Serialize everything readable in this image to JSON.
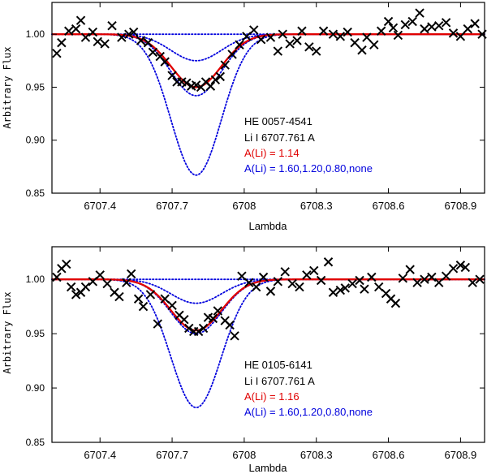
{
  "chart_data": [
    {
      "type": "line",
      "star": "HE 0057-4541",
      "line_label": "Li I 6707.761 A",
      "best_label": "A(Li) = 1.14",
      "grid_label": "A(Li) = 1.60,1.20,0.80,none",
      "xlabel": "Lambda",
      "ylabel": "Arbitrary Flux",
      "xlim": [
        6707.2,
        6709.0
      ],
      "ylim": [
        0.85,
        1.03
      ],
      "xticks": [
        6707.4,
        6707.7,
        6708.0,
        6708.3,
        6708.6,
        6708.9
      ],
      "xtick_labels": [
        "6707.4",
        "6707.7",
        "6708",
        "6708.3",
        "6708.6",
        "6708.9"
      ],
      "yticks": [
        0.85,
        0.9,
        0.95,
        1.0
      ],
      "ytick_labels": [
        "0.85",
        "0.90",
        "0.95",
        "1.00"
      ],
      "line_center": 6707.8,
      "line_sigma": 0.105,
      "best_fit": {
        "name": "A(Li) = 1.14",
        "color": "#e00000",
        "depth": 0.05
      },
      "series": [
        {
          "name": "A(Li) = 1.60",
          "color": "#0000dd",
          "depth": 0.133
        },
        {
          "name": "A(Li) = 1.20",
          "color": "#0000dd",
          "depth": 0.058
        },
        {
          "name": "A(Li) = 0.80",
          "color": "#0000dd",
          "depth": 0.025
        },
        {
          "name": "none",
          "color": "#0000dd",
          "depth": 0.0
        }
      ],
      "observed": [
        [
          6707.22,
          0.982
        ],
        [
          6707.24,
          0.992
        ],
        [
          6707.27,
          1.003
        ],
        [
          6707.3,
          1.005
        ],
        [
          6707.32,
          1.013
        ],
        [
          6707.34,
          0.997
        ],
        [
          6707.37,
          1.002
        ],
        [
          6707.39,
          0.993
        ],
        [
          6707.42,
          0.991
        ],
        [
          6707.45,
          1.008
        ],
        [
          6707.49,
          0.997
        ],
        [
          6707.52,
          1.0
        ],
        [
          6707.54,
          1.002
        ],
        [
          6707.57,
          0.994
        ],
        [
          6707.6,
          0.992
        ],
        [
          6707.62,
          0.983
        ],
        [
          6707.65,
          0.979
        ],
        [
          6707.67,
          0.974
        ],
        [
          6707.7,
          0.961
        ],
        [
          6707.72,
          0.955
        ],
        [
          6707.74,
          0.955
        ],
        [
          6707.76,
          0.954
        ],
        [
          6707.78,
          0.951
        ],
        [
          6707.8,
          0.952
        ],
        [
          6707.82,
          0.95
        ],
        [
          6707.84,
          0.955
        ],
        [
          6707.86,
          0.951
        ],
        [
          6707.88,
          0.957
        ],
        [
          6707.9,
          0.96
        ],
        [
          6707.92,
          0.971
        ],
        [
          6707.95,
          0.981
        ],
        [
          6707.98,
          0.99
        ],
        [
          6708.01,
          0.998
        ],
        [
          6708.04,
          1.004
        ],
        [
          6708.07,
          0.995
        ],
        [
          6708.11,
          0.997
        ],
        [
          6708.14,
          0.984
        ],
        [
          6708.16,
          1.0
        ],
        [
          6708.19,
          0.991
        ],
        [
          6708.22,
          0.994
        ],
        [
          6708.24,
          1.003
        ],
        [
          6708.27,
          0.988
        ],
        [
          6708.3,
          0.984
        ],
        [
          6708.33,
          1.003
        ],
        [
          6708.37,
          1.0
        ],
        [
          6708.4,
          0.998
        ],
        [
          6708.43,
          1.002
        ],
        [
          6708.46,
          0.992
        ],
        [
          6708.49,
          0.985
        ],
        [
          6708.51,
          0.997
        ],
        [
          6708.54,
          0.99
        ],
        [
          6708.57,
          1.003
        ],
        [
          6708.6,
          1.012
        ],
        [
          6708.62,
          1.006
        ],
        [
          6708.64,
          0.999
        ],
        [
          6708.67,
          1.009
        ],
        [
          6708.7,
          1.012
        ],
        [
          6708.73,
          1.02
        ],
        [
          6708.75,
          1.005
        ],
        [
          6708.78,
          1.007
        ],
        [
          6708.81,
          1.008
        ],
        [
          6708.84,
          1.011
        ],
        [
          6708.87,
          1.001
        ],
        [
          6708.9,
          0.998
        ],
        [
          6708.93,
          1.005
        ],
        [
          6708.96,
          1.01
        ],
        [
          6708.99,
          1.0
        ]
      ]
    },
    {
      "type": "line",
      "star": "HE 0105-6141",
      "line_label": "Li I 6707.761 A",
      "best_label": "A(Li) = 1.16",
      "grid_label": "A(Li) = 1.60,1.20,0.80,none",
      "xlabel": "Lambda",
      "ylabel": "Arbitrary Flux",
      "xlim": [
        6707.2,
        6709.0
      ],
      "ylim": [
        0.85,
        1.03
      ],
      "xticks": [
        6707.4,
        6707.7,
        6708.0,
        6708.3,
        6708.6,
        6708.9
      ],
      "xtick_labels": [
        "6707.4",
        "6707.7",
        "6708",
        "6708.3",
        "6708.6",
        "6708.9"
      ],
      "yticks": [
        0.85,
        0.9,
        0.95,
        1.0
      ],
      "ytick_labels": [
        "0.85",
        "0.90",
        "0.95",
        "1.00"
      ],
      "line_center": 6707.8,
      "line_sigma": 0.105,
      "best_fit": {
        "name": "A(Li) = 1.16",
        "color": "#e00000",
        "depth": 0.047
      },
      "series": [
        {
          "name": "A(Li) = 1.60",
          "color": "#0000dd",
          "depth": 0.118
        },
        {
          "name": "A(Li) = 1.20",
          "color": "#0000dd",
          "depth": 0.05
        },
        {
          "name": "A(Li) = 0.80",
          "color": "#0000dd",
          "depth": 0.022
        },
        {
          "name": "none",
          "color": "#0000dd",
          "depth": 0.0
        }
      ],
      "observed": [
        [
          6707.22,
          1.002
        ],
        [
          6707.24,
          1.01
        ],
        [
          6707.26,
          1.014
        ],
        [
          6707.28,
          0.993
        ],
        [
          6707.3,
          0.986
        ],
        [
          6707.32,
          0.988
        ],
        [
          6707.34,
          0.993
        ],
        [
          6707.37,
          0.998
        ],
        [
          6707.4,
          1.004
        ],
        [
          6707.43,
          0.996
        ],
        [
          6707.46,
          0.988
        ],
        [
          6707.48,
          0.984
        ],
        [
          6707.51,
          0.997
        ],
        [
          6707.53,
          1.005
        ],
        [
          6707.56,
          0.982
        ],
        [
          6707.58,
          0.975
        ],
        [
          6707.61,
          0.986
        ],
        [
          6707.64,
          0.959
        ],
        [
          6707.67,
          0.982
        ],
        [
          6707.7,
          0.976
        ],
        [
          6707.73,
          0.967
        ],
        [
          6707.75,
          0.963
        ],
        [
          6707.77,
          0.955
        ],
        [
          6707.79,
          0.952
        ],
        [
          6707.81,
          0.952
        ],
        [
          6707.83,
          0.955
        ],
        [
          6707.85,
          0.965
        ],
        [
          6707.87,
          0.964
        ],
        [
          6707.89,
          0.971
        ],
        [
          6707.92,
          0.962
        ],
        [
          6707.94,
          0.958
        ],
        [
          6707.96,
          0.948
        ],
        [
          6707.99,
          1.003
        ],
        [
          6708.02,
          0.997
        ],
        [
          6708.05,
          0.993
        ],
        [
          6708.08,
          1.002
        ],
        [
          6708.11,
          0.989
        ],
        [
          6708.14,
          0.998
        ],
        [
          6708.17,
          1.007
        ],
        [
          6708.2,
          0.996
        ],
        [
          6708.23,
          0.993
        ],
        [
          6708.26,
          1.004
        ],
        [
          6708.29,
          1.008
        ],
        [
          6708.32,
          0.999
        ],
        [
          6708.35,
          1.016
        ],
        [
          6708.37,
          0.988
        ],
        [
          6708.4,
          0.99
        ],
        [
          6708.42,
          0.992
        ],
        [
          6708.45,
          0.996
        ],
        [
          6708.48,
          0.999
        ],
        [
          6708.5,
          0.991
        ],
        [
          6708.53,
          1.002
        ],
        [
          6708.56,
          0.993
        ],
        [
          6708.59,
          0.987
        ],
        [
          6708.61,
          0.982
        ],
        [
          6708.63,
          0.978
        ],
        [
          6708.66,
          1.001
        ],
        [
          6708.69,
          1.009
        ],
        [
          6708.72,
          0.997
        ],
        [
          6708.75,
          1.0
        ],
        [
          6708.78,
          1.002
        ],
        [
          6708.81,
          0.997
        ],
        [
          6708.84,
          1.003
        ],
        [
          6708.87,
          1.01
        ],
        [
          6708.9,
          1.013
        ],
        [
          6708.92,
          1.011
        ],
        [
          6708.95,
          0.997
        ],
        [
          6708.98,
          1.0
        ]
      ]
    }
  ]
}
